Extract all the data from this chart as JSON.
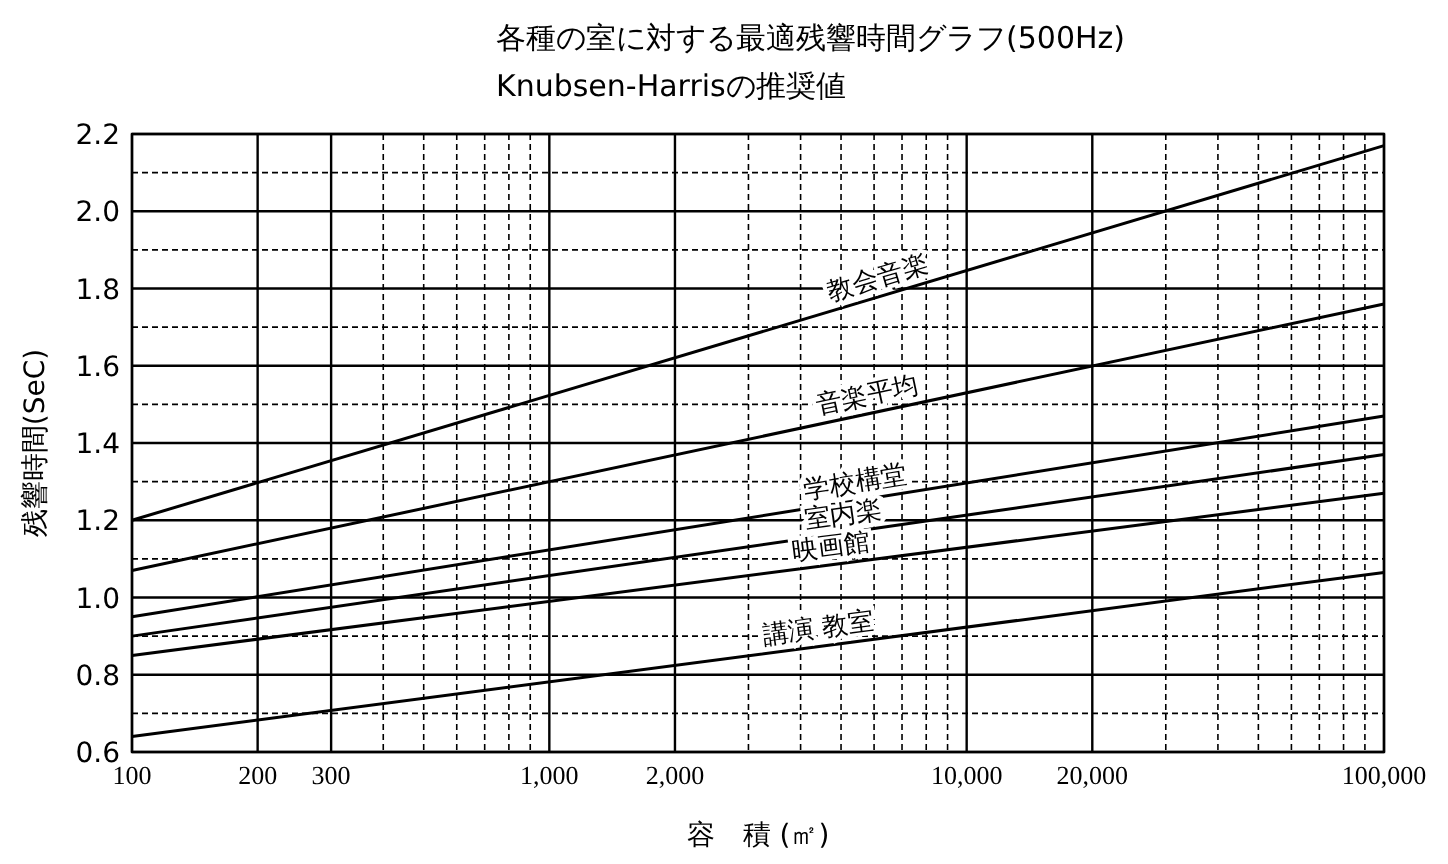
{
  "chart_data": {
    "type": "line",
    "title": "各種の室に対する最適残響時間グラフ(500Hz)",
    "subtitle": "Knubsen-Harrisの推奨値",
    "xlabel": "容　積 (㎡)",
    "ylabel": "残響時間(SeC)",
    "log": "x",
    "grid": true,
    "marker": "none",
    "line_style": "solid",
    "x": [
      100,
      100000
    ],
    "series": [
      {
        "name": "教会音楽",
        "color": "#000000",
        "values": [
          1.2,
          2.17
        ]
      },
      {
        "name": "音楽平均",
        "color": "#000000",
        "values": [
          1.07,
          1.76
        ]
      },
      {
        "name": "学校構堂",
        "color": "#000000",
        "values": [
          0.95,
          1.47
        ]
      },
      {
        "name": "室内楽",
        "color": "#000000",
        "values": [
          0.9,
          1.37
        ]
      },
      {
        "name": "映画館",
        "color": "#000000",
        "values": [
          0.85,
          1.27
        ]
      },
      {
        "name": "講演 教室",
        "color": "#000000",
        "values": [
          0.64,
          1.065
        ]
      }
    ],
    "xlim": [
      100,
      100000
    ],
    "xticks": [
      100,
      {
        "value": 200,
        "label": "200"
      },
      {
        "value": 300,
        "label": "300"
      },
      {
        "value": 400,
        "label": null
      },
      {
        "value": 500,
        "label": null
      },
      {
        "value": 600,
        "label": null
      },
      {
        "value": 700,
        "label": null
      },
      {
        "value": 800,
        "label": null
      },
      {
        "value": 900,
        "label": null
      },
      {
        "value": 1000,
        "label": "1,000"
      },
      {
        "value": 2000,
        "label": "2,000"
      },
      {
        "value": 3000,
        "label": null
      },
      {
        "value": 4000,
        "label": null
      },
      {
        "value": 5000,
        "label": null
      },
      {
        "value": 6000,
        "label": null
      },
      {
        "value": 7000,
        "label": null
      },
      {
        "value": 8000,
        "label": null
      },
      {
        "value": 9000,
        "label": null
      },
      {
        "value": 10000,
        "label": "10,000"
      },
      {
        "value": 20000,
        "label": "20,000"
      },
      {
        "value": 30000,
        "label": null
      },
      {
        "value": 40000,
        "label": null
      },
      {
        "value": 50000,
        "label": null
      },
      {
        "value": 60000,
        "label": null
      },
      {
        "value": 70000,
        "label": null
      },
      {
        "value": 80000,
        "label": null
      },
      {
        "value": 90000,
        "label": null
      },
      {
        "value": 100000,
        "label": "100,000"
      }
    ],
    "ylim": [
      0.6,
      2.2
    ],
    "yticks": [
      {
        "value": 0.6,
        "label": "0.6"
      },
      {
        "value": 0.7,
        "label": null
      },
      {
        "value": 0.8,
        "label": "0.8"
      },
      {
        "value": 0.9,
        "label": null
      },
      {
        "value": 1.0,
        "label": "1.0"
      },
      {
        "value": 1.1,
        "label": null
      },
      {
        "value": 1.2,
        "label": "1.2"
      },
      {
        "value": 1.3,
        "label": null
      },
      {
        "value": 1.4,
        "label": "1.4"
      },
      {
        "value": 1.5,
        "label": null
      },
      {
        "value": 1.6,
        "label": "1.6"
      },
      {
        "value": 1.7,
        "label": null
      },
      {
        "value": 1.8,
        "label": "1.8"
      },
      {
        "value": 1.9,
        "label": null
      },
      {
        "value": 2.0,
        "label": "2.0"
      },
      {
        "value": 2.1,
        "label": null
      },
      {
        "value": 2.2,
        "label": "2.2"
      }
    ]
  }
}
